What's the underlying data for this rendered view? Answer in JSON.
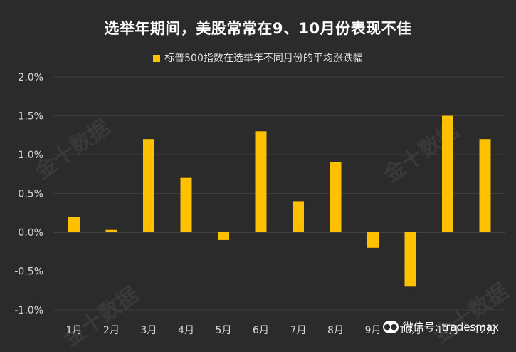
{
  "watermark_brand": "金十数据",
  "wechat": {
    "label": "微信号: tradesmax",
    "icon": "wechat-icon"
  },
  "colors": {
    "background": "#2b2b2b",
    "bar": "#ffc000",
    "grid": "#3d3d3d",
    "axis_text": "#d8d8d8"
  },
  "chart_data": {
    "type": "bar",
    "title": "选举年期间，美股常常在9、10月份表现不佳",
    "legend": "标普500指数在选举年不同月份的平均涨跌幅",
    "legend_position": "top-center",
    "categories": [
      "1月",
      "2月",
      "3月",
      "4月",
      "5月",
      "6月",
      "7月",
      "8月",
      "9月",
      "10月",
      "11月",
      "12月"
    ],
    "series": [
      {
        "name": "标普500指数在选举年不同月份的平均涨跌幅",
        "values": [
          0.2,
          0.03,
          1.2,
          0.7,
          -0.1,
          1.3,
          0.4,
          0.9,
          -0.2,
          -0.7,
          1.5,
          1.2
        ]
      }
    ],
    "yticks": [
      2.0,
      1.5,
      1.0,
      0.5,
      0.0,
      -0.5,
      -1.0
    ],
    "ytick_labels": [
      "2.0%",
      "1.5%",
      "1.0%",
      "0.5%",
      "0.0%",
      "-0.5%",
      "-1.0%"
    ],
    "ylim": [
      -1.0,
      2.0
    ],
    "grid": true,
    "xlabel": "",
    "ylabel": ""
  }
}
